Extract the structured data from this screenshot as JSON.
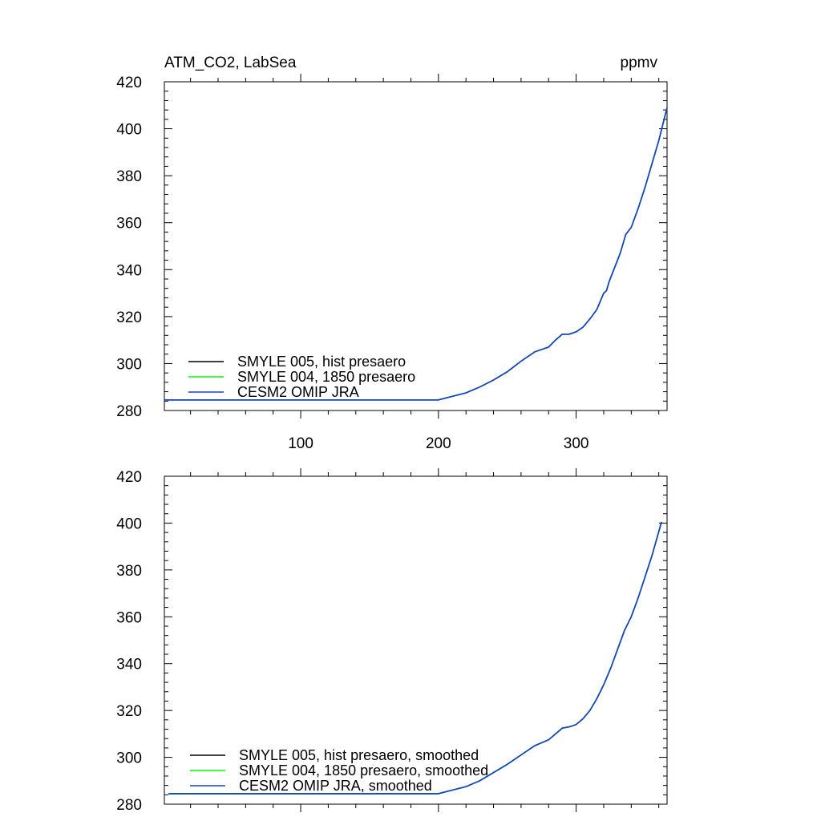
{
  "header": {
    "left_title": "ATM_CO2, LabSea",
    "right_title": "ppmv"
  },
  "colors": {
    "smyle005": "#000000",
    "smyle004": "#00ff00",
    "omip": "#1a3fcc"
  },
  "chart_data": [
    {
      "type": "line",
      "title": "ATM_CO2, LabSea",
      "units": "ppmv",
      "xlim": [
        1,
        366
      ],
      "ylim": [
        280,
        420
      ],
      "x_ticks": [
        100,
        200,
        300
      ],
      "x_tick_labels": [
        "100",
        "200",
        "300"
      ],
      "y_ticks": [
        280,
        300,
        320,
        340,
        360,
        380,
        400,
        420
      ],
      "y_tick_labels": [
        "280",
        "300",
        "320",
        "340",
        "360",
        "380",
        "400",
        "420"
      ],
      "legend_position": "bottom-left",
      "series": [
        {
          "name": "SMYLE 005, hist presaero",
          "color": "#000000",
          "x": [
            1,
            200,
            210,
            220,
            230,
            240,
            250,
            260,
            270,
            280,
            285,
            290,
            295,
            300,
            305,
            310,
            315,
            320,
            322,
            324,
            328,
            332,
            336,
            340,
            345,
            350,
            355,
            360,
            366
          ],
          "y": [
            284.5,
            284.5,
            286,
            287.5,
            290,
            293,
            296.5,
            301,
            305,
            307,
            310,
            312.5,
            312.5,
            313.5,
            315.5,
            319,
            323,
            330,
            331,
            335,
            341,
            347,
            355,
            358,
            366,
            375,
            385,
            395,
            409
          ]
        },
        {
          "name": "SMYLE 004, 1850 presaero",
          "color": "#00ff00",
          "x": [
            1,
            200,
            210,
            220,
            230,
            240,
            250,
            260,
            270,
            280,
            285,
            290,
            295,
            300,
            305,
            310,
            315,
            320,
            322,
            324,
            328,
            332,
            336,
            340,
            345,
            350,
            355,
            360,
            366
          ],
          "y": [
            284.5,
            284.5,
            286,
            287.5,
            290,
            293,
            296.5,
            301,
            305,
            307,
            310,
            312.5,
            312.5,
            313.5,
            315.5,
            319,
            323,
            330,
            331,
            335,
            341,
            347,
            355,
            358,
            366,
            375,
            385,
            395,
            409
          ]
        },
        {
          "name": "CESM2 OMIP JRA",
          "color": "#1a3fcc",
          "x": [
            1,
            200,
            210,
            220,
            230,
            240,
            250,
            260,
            270,
            280,
            285,
            290,
            295,
            300,
            305,
            310,
            315,
            320,
            322,
            324,
            328,
            332,
            336,
            340,
            345,
            350,
            355,
            360,
            366
          ],
          "y": [
            284.5,
            284.5,
            286,
            287.5,
            290,
            293,
            296.5,
            301,
            305,
            307,
            310,
            312.5,
            312.5,
            313.5,
            315.5,
            319,
            323,
            330,
            331,
            335,
            341,
            347,
            355,
            358,
            366,
            375,
            385,
            395,
            409
          ]
        }
      ]
    },
    {
      "type": "line",
      "xlim": [
        1,
        366
      ],
      "ylim": [
        280,
        420
      ],
      "x_ticks": [
        100,
        200,
        300
      ],
      "x_tick_labels": [],
      "y_ticks": [
        280,
        300,
        320,
        340,
        360,
        380,
        400,
        420
      ],
      "y_tick_labels": [
        "280",
        "300",
        "320",
        "340",
        "360",
        "380",
        "400",
        "420"
      ],
      "legend_position": "bottom-left",
      "series": [
        {
          "name": "SMYLE 005, hist presaero, smoothed",
          "color": "#000000",
          "x": [
            4,
            200,
            210,
            220,
            230,
            240,
            250,
            260,
            270,
            280,
            285,
            290,
            295,
            300,
            305,
            310,
            315,
            320,
            325,
            330,
            335,
            340,
            345,
            350,
            355,
            362
          ],
          "y": [
            284.5,
            284.5,
            286,
            287.5,
            290,
            293.5,
            297,
            301,
            305,
            307.5,
            310,
            312.5,
            313,
            314,
            316.5,
            320,
            325,
            331,
            338,
            346,
            354,
            360,
            368,
            377,
            386,
            400.5
          ]
        },
        {
          "name": "SMYLE 004, 1850 presaero, smoothed",
          "color": "#00ff00",
          "x": [
            4,
            200,
            210,
            220,
            230,
            240,
            250,
            260,
            270,
            280,
            285,
            290,
            295,
            300,
            305,
            310,
            315,
            320,
            325,
            330,
            335,
            340,
            345,
            350,
            355,
            362
          ],
          "y": [
            284.5,
            284.5,
            286,
            287.5,
            290,
            293.5,
            297,
            301,
            305,
            307.5,
            310,
            312.5,
            313,
            314,
            316.5,
            320,
            325,
            331,
            338,
            346,
            354,
            360,
            368,
            377,
            386,
            400.5
          ]
        },
        {
          "name": "CESM2 OMIP JRA, smoothed",
          "color": "#1a3fcc",
          "x": [
            4,
            200,
            210,
            220,
            230,
            240,
            250,
            260,
            270,
            280,
            285,
            290,
            295,
            300,
            305,
            310,
            315,
            320,
            325,
            330,
            335,
            340,
            345,
            350,
            355,
            362
          ],
          "y": [
            284.5,
            284.5,
            286,
            287.5,
            290,
            293.5,
            297,
            301,
            305,
            307.5,
            310,
            312.5,
            313,
            314,
            316.5,
            320,
            325,
            331,
            338,
            346,
            354,
            360,
            368,
            377,
            386,
            400.5
          ]
        }
      ]
    }
  ]
}
